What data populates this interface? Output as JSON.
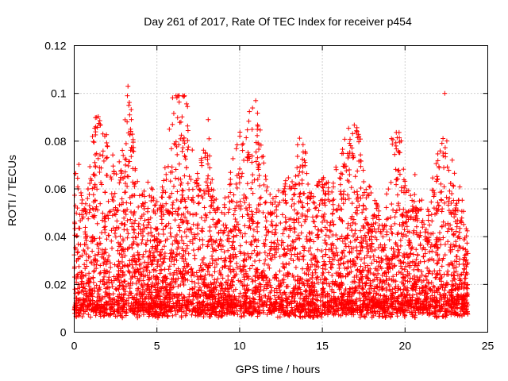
{
  "chart_data": {
    "type": "scatter",
    "title": "Day 261 of 2017, Rate Of TEC Index for receiver p454",
    "xlabel": "GPS time / hours",
    "ylabel": "ROTI / TECUs",
    "xlim": [
      0,
      25
    ],
    "ylim": [
      0,
      0.12
    ],
    "xticks": [
      0,
      5,
      10,
      15,
      20,
      25
    ],
    "yticks": [
      0,
      0.02,
      0.04,
      0.06,
      0.08,
      0.1,
      0.12
    ],
    "xtick_labels": [
      "0",
      "5",
      "10",
      "15",
      "20",
      "25"
    ],
    "ytick_labels": [
      "0",
      "0.02",
      "0.04",
      "0.06",
      "0.08",
      "0.1",
      "0.12"
    ],
    "grid": true,
    "marker": "+",
    "color": "#ff0000",
    "series": [
      {
        "name": "ROTI",
        "notable_points": [
          {
            "x": 3.25,
            "y": 0.103
          },
          {
            "x": 3.3,
            "y": 0.095
          },
          {
            "x": 3.35,
            "y": 0.091
          },
          {
            "x": 3.4,
            "y": 0.085
          },
          {
            "x": 1.3,
            "y": 0.086
          },
          {
            "x": 5.75,
            "y": 0.085
          },
          {
            "x": 6.45,
            "y": 0.088
          },
          {
            "x": 8.1,
            "y": 0.089
          },
          {
            "x": 8.15,
            "y": 0.081
          },
          {
            "x": 2.0,
            "y": 0.078
          },
          {
            "x": 22.4,
            "y": 0.1
          },
          {
            "x": 19.45,
            "y": 0.078
          },
          {
            "x": 22.3,
            "y": 0.075
          },
          {
            "x": 10.25,
            "y": 0.072
          },
          {
            "x": 11.15,
            "y": 0.07
          },
          {
            "x": 16.85,
            "y": 0.073
          },
          {
            "x": 20.6,
            "y": 0.066
          },
          {
            "x": 13.8,
            "y": 0.067
          },
          {
            "x": 17.5,
            "y": 0.063
          },
          {
            "x": 15.0,
            "y": 0.061
          }
        ]
      }
    ]
  }
}
